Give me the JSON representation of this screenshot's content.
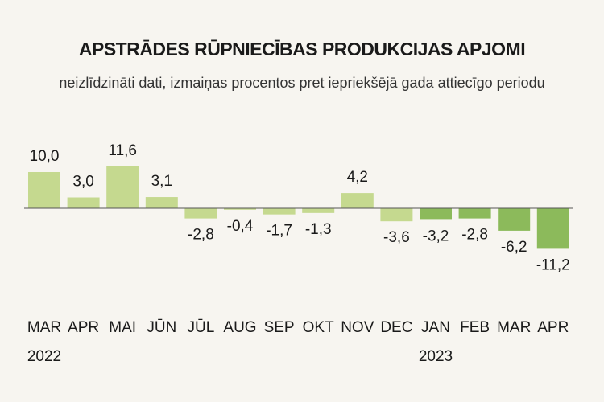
{
  "chart_data": {
    "type": "bar",
    "title": "APSTRĀDES RŪPNIECĪBAS PRODUKCIJAS APJOMI",
    "subtitle": "neizlīdzināti dati, izmaiņas procentos pret iepriekšējā gada attiecīgo periodu",
    "categories": [
      "MAR",
      "APR",
      "MAI",
      "JŪN",
      "JŪL",
      "AUG",
      "SEP",
      "OKT",
      "NOV",
      "DEC",
      "JAN",
      "FEB",
      "MAR",
      "APR"
    ],
    "values": [
      10.0,
      3.0,
      11.6,
      3.1,
      -2.8,
      -0.4,
      -1.7,
      -1.3,
      4.2,
      -3.6,
      -3.2,
      -2.8,
      -6.2,
      -11.2
    ],
    "value_labels": [
      "10,0",
      "3,0",
      "11,6",
      "3,1",
      "-2,8",
      "-0,4",
      "-1,7",
      "-1,3",
      "4,2",
      "-3,6",
      "-3,2",
      "-2,8",
      "-6,2",
      "-11,2"
    ],
    "year_labels": [
      {
        "text": "2022",
        "category_index": 0
      },
      {
        "text": "2023",
        "category_index": 10
      }
    ],
    "colors": {
      "year_2022": "#c5d98f",
      "year_2023": "#8cba5b",
      "baseline": "#555555"
    },
    "ylim": [
      -12,
      12
    ],
    "grid": false,
    "legend": "none"
  }
}
